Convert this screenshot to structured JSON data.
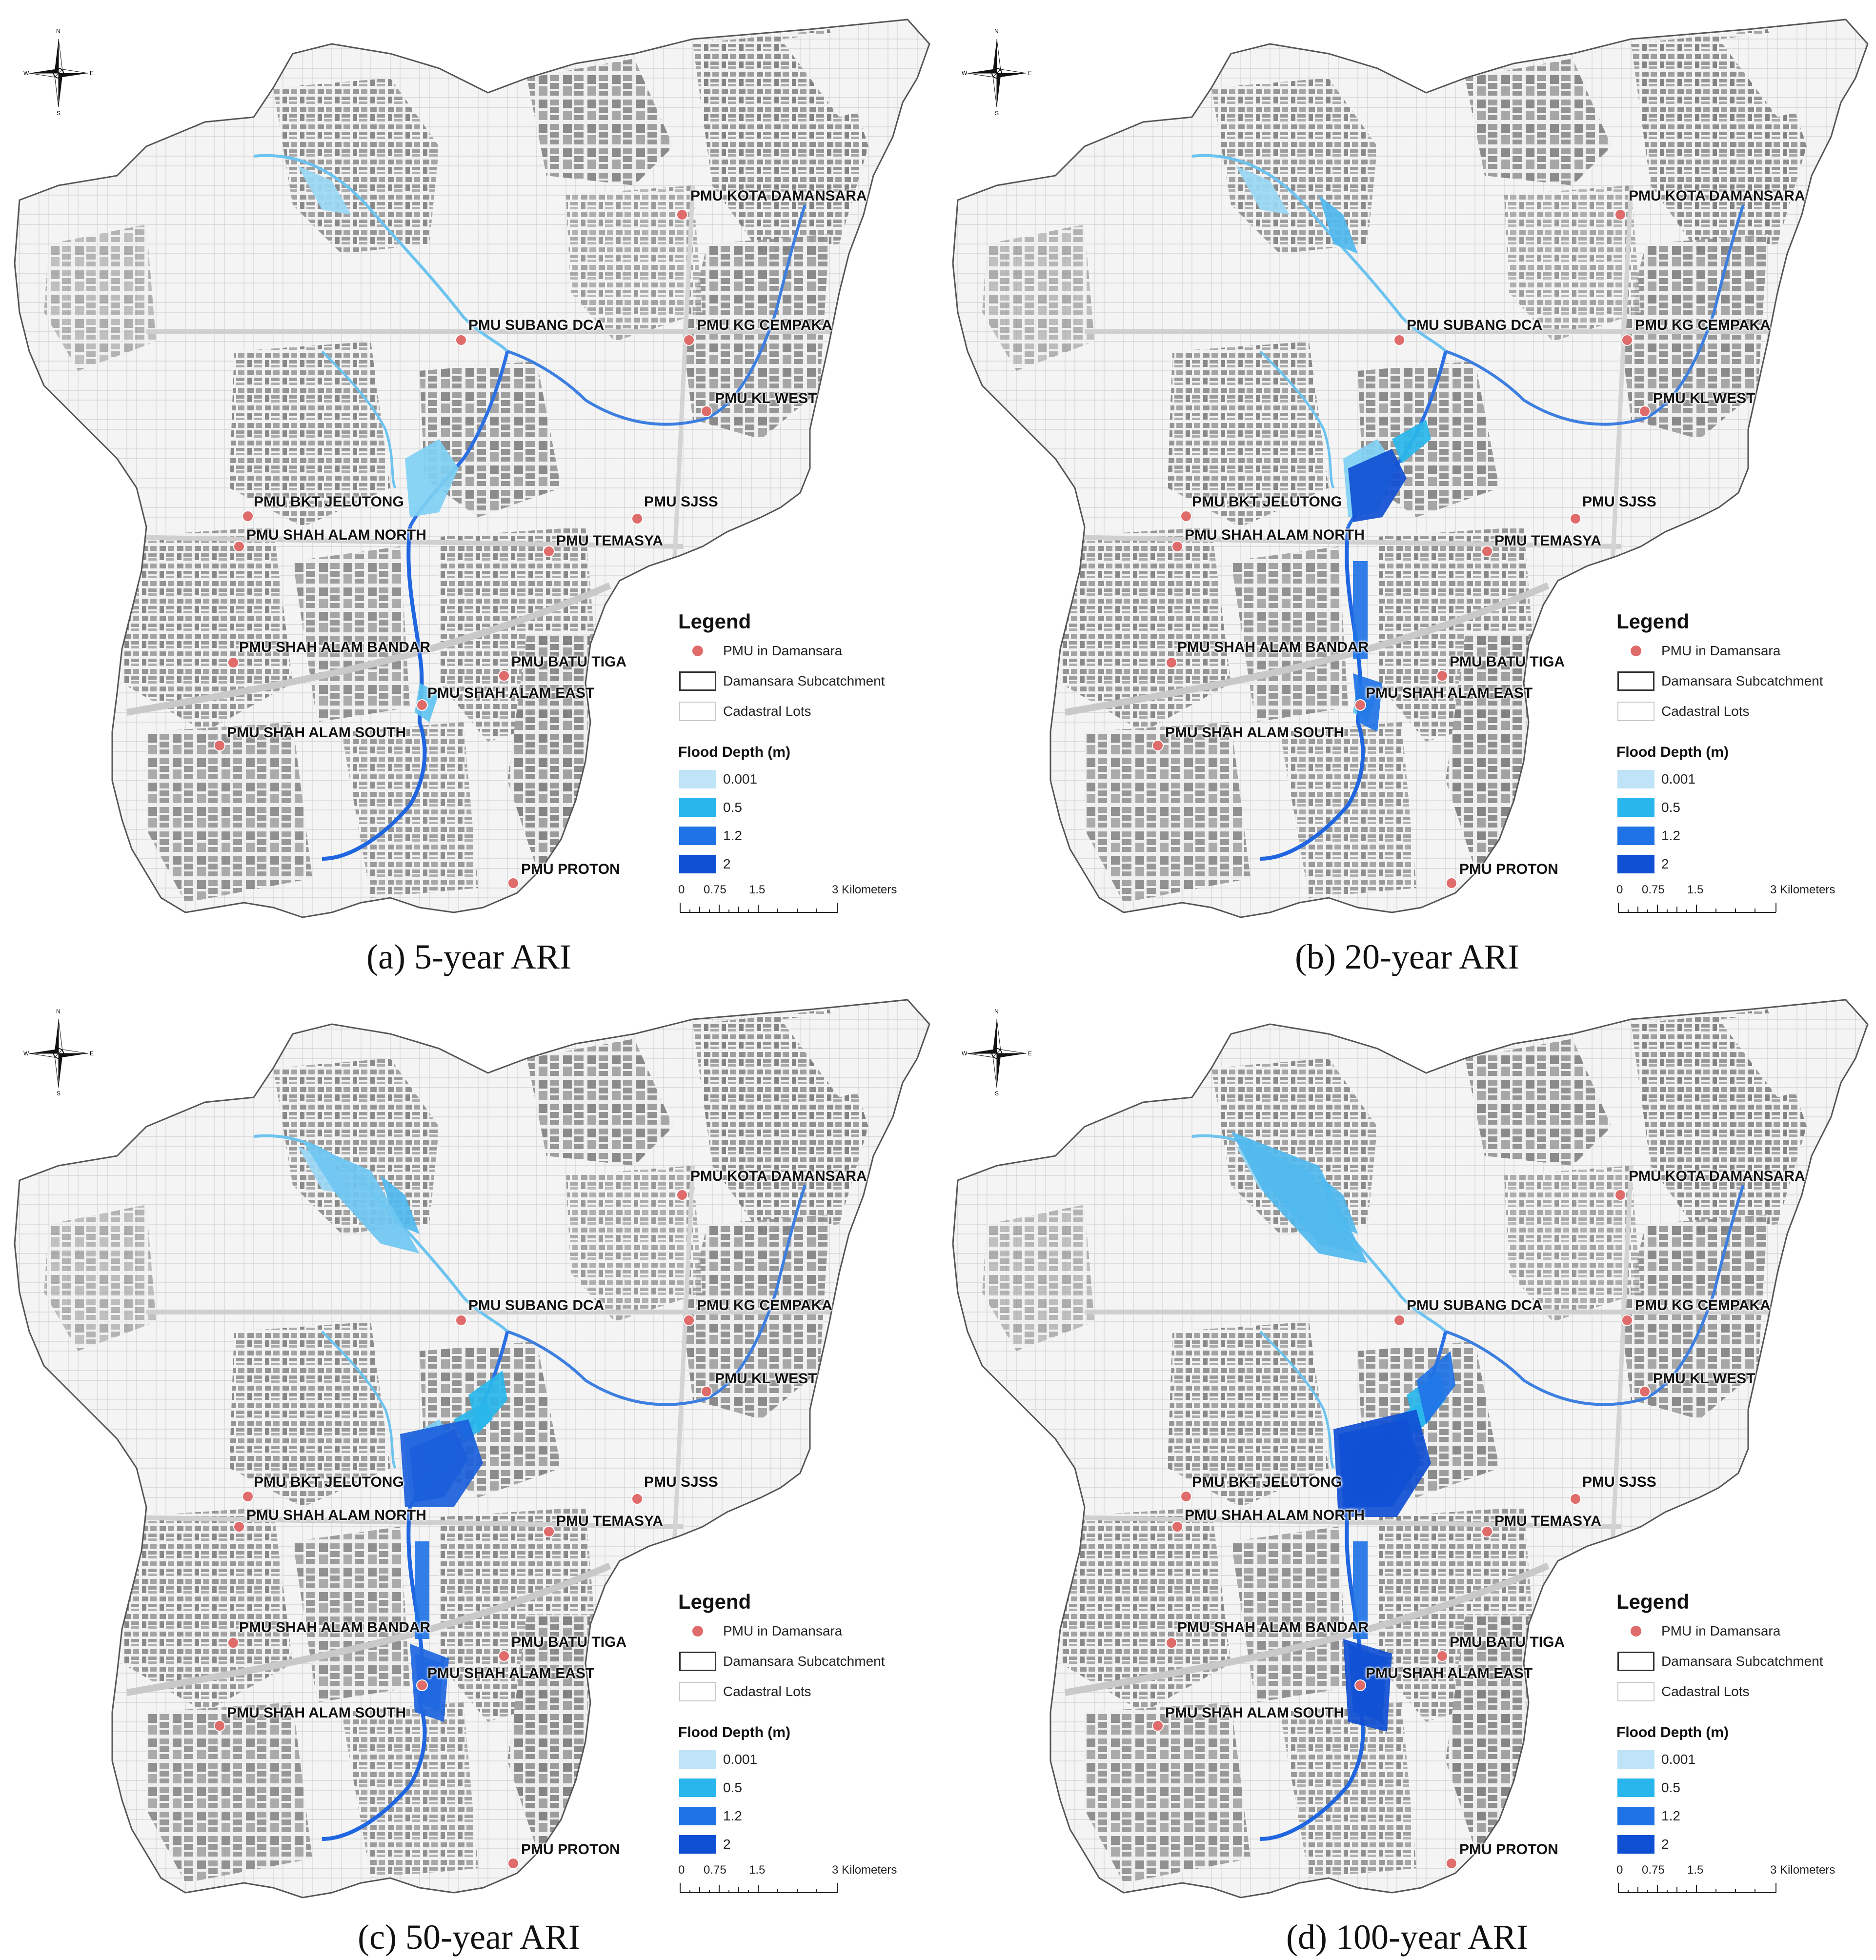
{
  "panels": [
    {
      "caption": "(a) 5-year ARI",
      "flood_level": 1
    },
    {
      "caption": "(b) 20-year ARI",
      "flood_level": 2
    },
    {
      "caption": "(c) 50-year ARI",
      "flood_level": 3
    },
    {
      "caption": "(d) 100-year ARI",
      "flood_level": 4
    }
  ],
  "pmu_labels": {
    "kota_damansara": "PMU KOTA DAMANSARA",
    "subang_dca": "PMU SUBANG DCA",
    "kg_cempaka": "PMU KG CEMPAKA",
    "kl_west": "PMU KL WEST",
    "bkt_jelutong": "PMU BKT JELUTONG",
    "sjss": "PMU SJSS",
    "shah_alam_north": "PMU SHAH ALAM NORTH",
    "temasya": "PMU TEMASYA",
    "shah_alam_bandar": "PMU SHAH ALAM BANDAR",
    "batu_tiga": "PMU BATU TIGA",
    "shah_alam_east": "PMU SHAH ALAM EAST",
    "shah_alam_south": "PMU SHAH ALAM SOUTH",
    "proton": "PMU PROTON"
  },
  "legend": {
    "title": "Legend",
    "pmu": "PMU in Damansara",
    "subcatchment": "Damansara Subcatchment",
    "cadastral": "Cadastral Lots",
    "flood_title": "Flood Depth (m)",
    "flood_classes": [
      {
        "label": "0.001",
        "color": "#bfe3f7"
      },
      {
        "label": "0.5",
        "color": "#29b6ec"
      },
      {
        "label": "1.2",
        "color": "#1f73e6"
      },
      {
        "label": "2",
        "color": "#0f4fd4"
      }
    ],
    "scale_ticks": [
      "0",
      "0.75",
      "1.5",
      "3 Kilometers"
    ]
  },
  "compass_letters": {
    "n": "N",
    "s": "S",
    "e": "E",
    "w": "W"
  }
}
